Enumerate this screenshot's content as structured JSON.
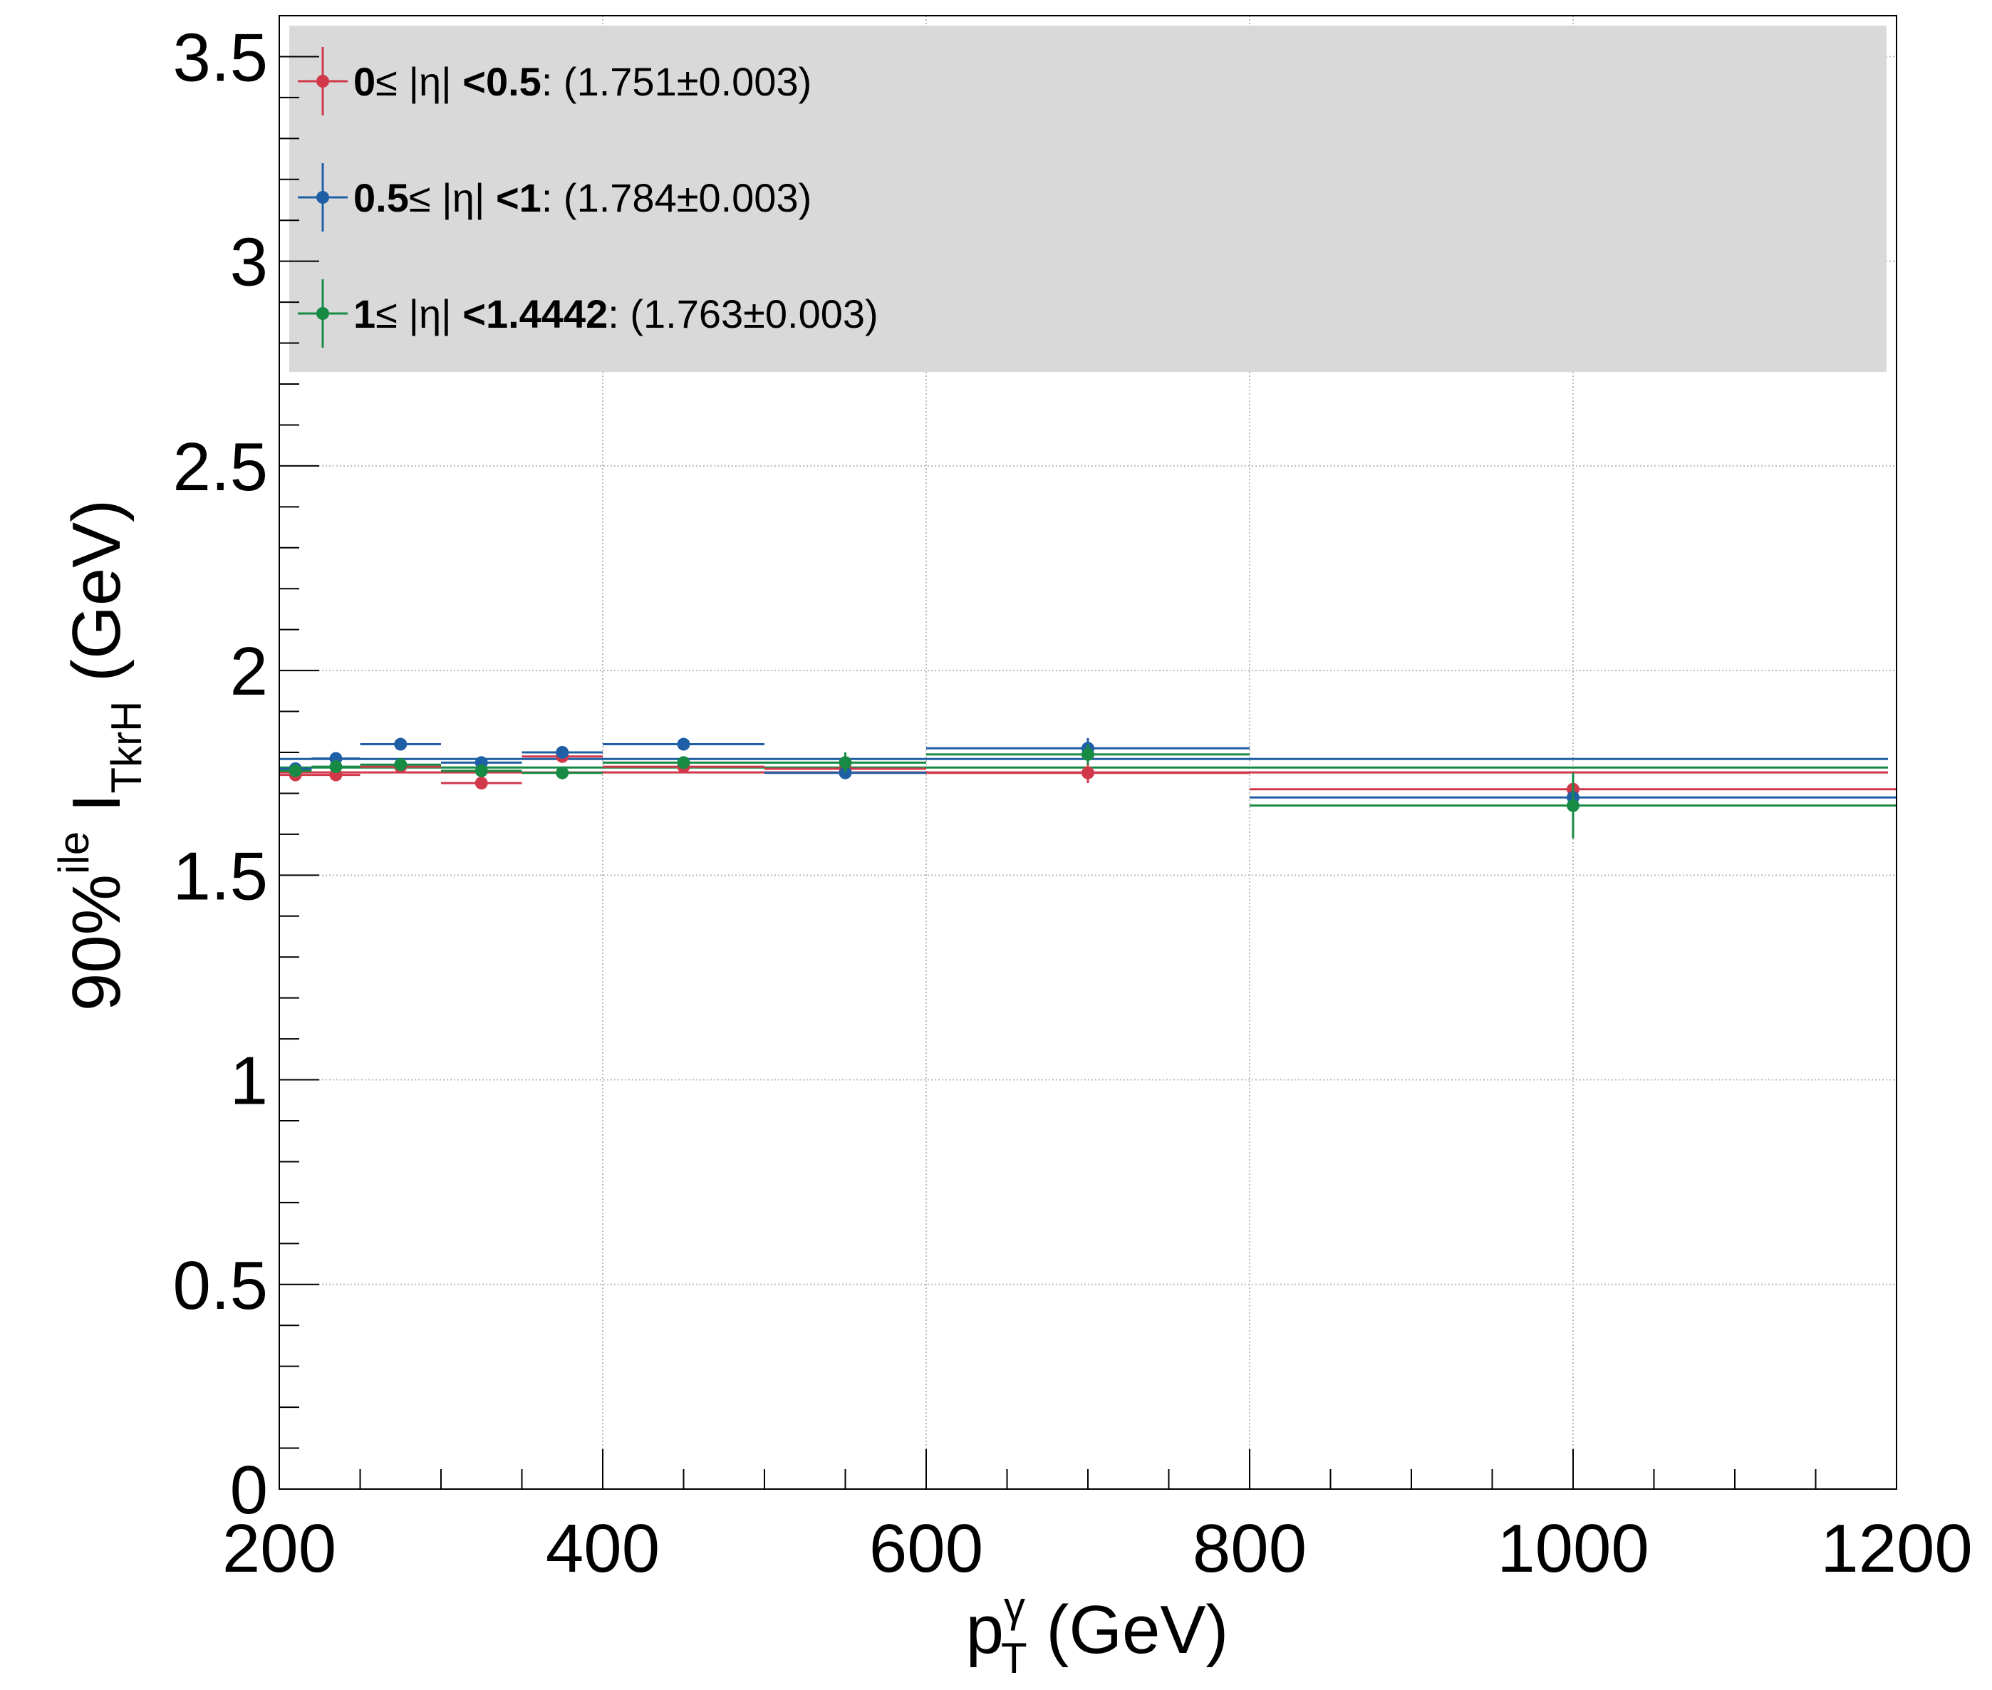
{
  "chart_data": {
    "type": "scatter",
    "xlim": [
      200,
      1200
    ],
    "ylim": [
      0,
      3.6
    ],
    "x_ticks": [
      200,
      400,
      600,
      800,
      1000,
      1200
    ],
    "y_ticks": [
      0,
      0.5,
      1,
      1.5,
      2,
      2.5,
      3,
      3.5
    ],
    "x_ticks_text": [
      "200",
      "400",
      "600",
      "800",
      "1000",
      "1200"
    ],
    "y_ticks_text": [
      "0",
      "0.5",
      "1",
      "1.5",
      "2",
      "2.5",
      "3",
      "3.5"
    ],
    "xlabel": {
      "base": "p",
      "sup": "γ",
      "sub": "T",
      "unit": " (GeV)"
    },
    "ylabel": {
      "base": "90%",
      "sup": "ile",
      "main": " I",
      "sub": "TkrH",
      "unit": " (GeV)"
    },
    "grid": true,
    "legend_position": "top-left",
    "legend_background": "#d9d9d9",
    "series": [
      {
        "name": "0≤ |η| <0.5",
        "name_parts": {
          "lo": "0",
          "mid": "≤ |η| ",
          "hi": "<0.5"
        },
        "fit_text": ": (1.751±0.003)",
        "fit_value": 1.751,
        "fit_error": 0.003,
        "color": "#d1394b",
        "x": [
          210,
          235,
          275,
          325,
          375,
          450,
          550,
          700,
          1000
        ],
        "x_low": [
          200,
          220,
          250,
          300,
          350,
          400,
          500,
          600,
          800
        ],
        "x_high": [
          220,
          250,
          300,
          350,
          400,
          500,
          600,
          800,
          1200
        ],
        "y": [
          1.745,
          1.745,
          1.765,
          1.725,
          1.79,
          1.765,
          1.76,
          1.75,
          1.71
        ],
        "y_err": [
          0.005,
          0.005,
          0.006,
          0.008,
          0.008,
          0.008,
          0.012,
          0.025,
          0.04
        ]
      },
      {
        "name": "0.5≤ |η| <1",
        "name_parts": {
          "lo": "0.5",
          "mid": "≤ |η| ",
          "hi": "<1"
        },
        "fit_text": ": (1.784±0.003)",
        "fit_value": 1.784,
        "fit_error": 0.003,
        "color": "#1f5fa6",
        "x": [
          210,
          235,
          275,
          325,
          375,
          450,
          550,
          700,
          1000
        ],
        "x_low": [
          200,
          220,
          250,
          300,
          350,
          400,
          500,
          600,
          800
        ],
        "x_high": [
          220,
          250,
          300,
          350,
          400,
          500,
          600,
          800,
          1200
        ],
        "y": [
          1.76,
          1.785,
          1.82,
          1.775,
          1.8,
          1.82,
          1.75,
          1.81,
          1.69
        ],
        "y_err": [
          0.005,
          0.005,
          0.006,
          0.008,
          0.008,
          0.008,
          0.012,
          0.025,
          0.05
        ]
      },
      {
        "name": "1≤ |η| <1.4442",
        "name_parts": {
          "lo": "1",
          "mid": "≤ |η| ",
          "hi": "<1.4442"
        },
        "fit_text": ": (1.763±0.003)",
        "fit_value": 1.763,
        "fit_error": 0.003,
        "color": "#178a43",
        "x": [
          210,
          235,
          275,
          325,
          375,
          450,
          550,
          700,
          1000
        ],
        "x_low": [
          200,
          220,
          250,
          300,
          350,
          400,
          500,
          600,
          800
        ],
        "x_high": [
          220,
          250,
          300,
          350,
          400,
          500,
          600,
          800,
          1200
        ],
        "y": [
          1.755,
          1.765,
          1.77,
          1.755,
          1.75,
          1.775,
          1.775,
          1.795,
          1.67
        ],
        "y_err": [
          0.005,
          0.005,
          0.006,
          0.008,
          0.008,
          0.008,
          0.025,
          0.025,
          0.08
        ]
      }
    ]
  }
}
